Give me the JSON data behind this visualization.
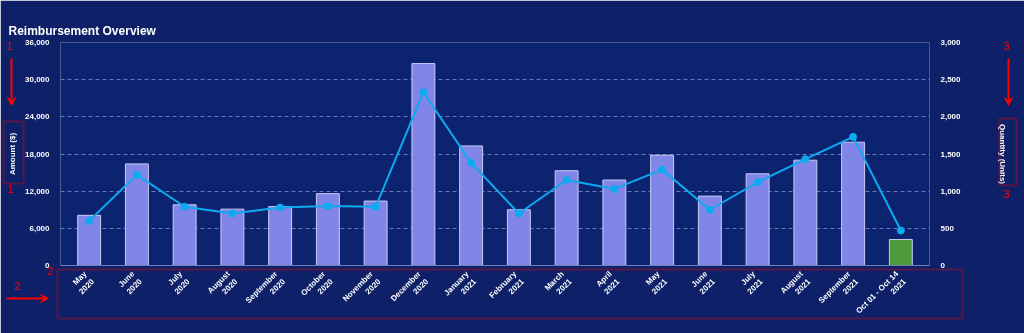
{
  "chart_data": {
    "type": "bar",
    "title": "Reimbursement Overview",
    "categories": [
      "May\n2020",
      "June\n2020",
      "July\n2020",
      "August\n2020",
      "September\n2020",
      "October\n2020",
      "November\n2020",
      "December\n2020",
      "January\n2021",
      "February\n2021",
      "March\n2021",
      "April\n2021",
      "May\n2021",
      "June\n2021",
      "July\n2021",
      "August\n2021",
      "September\n2021",
      "Oct 01 - Oct 14\n2021"
    ],
    "ylabel": "Amount ($)",
    "y2label": "Quantity (Units)",
    "ylim": [
      0,
      36000
    ],
    "yticks": [
      0,
      {
        "value": 6000,
        "label": "6,000"
      },
      {
        "value": 12000,
        "label": "12,000"
      },
      {
        "value": 18000,
        "label": "18,000"
      },
      {
        "value": 24000,
        "label": "24,000"
      },
      {
        "value": 30000,
        "label": "30,000"
      },
      {
        "value": 36000,
        "label": "36,000"
      }
    ],
    "y2lim": [
      0,
      3000
    ],
    "y2ticks": [
      0,
      500,
      {
        "value": 1000,
        "label": "1,000"
      },
      {
        "value": 1500,
        "label": "1,500"
      },
      {
        "value": 2000,
        "label": "2,000"
      },
      {
        "value": 2500,
        "label": "2,500"
      },
      {
        "value": 3000,
        "label": "3,000"
      }
    ],
    "grid": "y",
    "series": [
      {
        "values": [
          8100,
          16400,
          9800,
          9100,
          9500,
          11600,
          10400,
          32600,
          19300,
          9000,
          15300,
          13800,
          17800,
          11200,
          14800,
          17000,
          19900,
          4200
        ],
        "colors": [
          "#8185e8",
          "#8185e8",
          "#8185e8",
          "#8185e8",
          "#8185e8",
          "#8185e8",
          "#8185e8",
          "#8185e8",
          "#8185e8",
          "#8185e8",
          "#8185e8",
          "#8185e8",
          "#8185e8",
          "#8185e8",
          "#8185e8",
          "#8185e8",
          "#8185e8",
          "#4e9a3c"
        ]
      },
      {
        "type": "line",
        "axis": "y2",
        "color": "#0eaaf0",
        "marker": "circle",
        "values": [
          600,
          1220,
          790,
          700,
          780,
          800,
          790,
          2330,
          1380,
          700,
          1150,
          1030,
          1290,
          750,
          1120,
          1430,
          1730,
          470
        ]
      }
    ],
    "annotations": [
      "1",
      "1",
      "2",
      "2",
      "3",
      "3"
    ]
  }
}
